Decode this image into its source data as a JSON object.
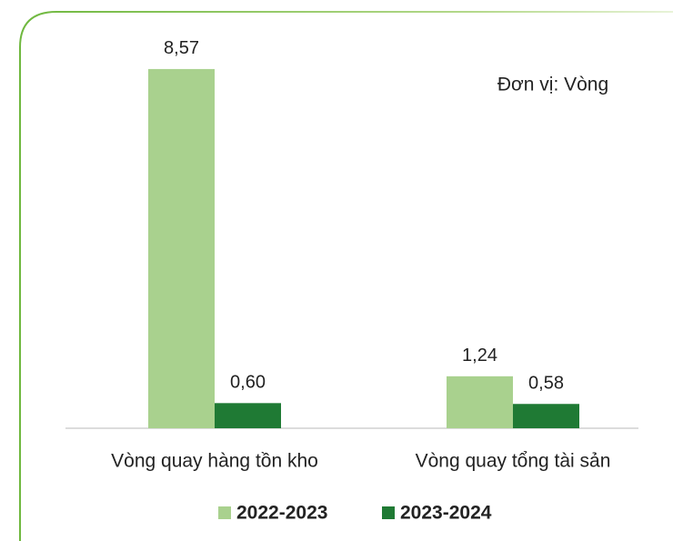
{
  "chart_data": {
    "type": "bar",
    "annotations": [
      "Đơn vị: Vòng"
    ],
    "categories": [
      "Vòng quay hàng tồn kho",
      "Vòng quay tổng tài sản"
    ],
    "series": [
      {
        "name": "2022-2023",
        "color": "#a9d18e",
        "values": [
          8.57,
          1.24
        ],
        "value_labels": [
          "8,57",
          "1,24"
        ]
      },
      {
        "name": "2023-2024",
        "color": "#1f7a34",
        "values": [
          0.6,
          0.58
        ],
        "value_labels": [
          "0,60",
          "0,58"
        ]
      }
    ]
  }
}
